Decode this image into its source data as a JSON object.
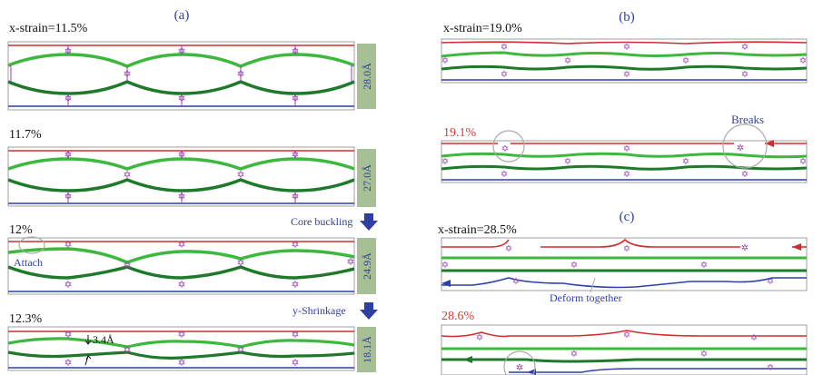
{
  "panels": {
    "a": "(a)",
    "b": "(b)",
    "c": "(c)"
  },
  "panel_a": {
    "rows": [
      {
        "strain": "x-strain=11.5%",
        "gap": "28.0Å"
      },
      {
        "strain": "11.7%",
        "gap": "27.0Å"
      },
      {
        "strain": "12%",
        "gap": "24.9Å",
        "note": "Attach"
      },
      {
        "strain": "12.3%",
        "gap": "18.1Å",
        "dimension": "3.4Å"
      }
    ],
    "arrows": [
      "Core buckling",
      "y-Shrinkage"
    ]
  },
  "panel_b": {
    "rows": [
      {
        "strain": "x-strain=19.0%"
      },
      {
        "strain": "19.1%",
        "note": "Breaks"
      }
    ]
  },
  "panel_c": {
    "rows": [
      {
        "strain": "x-strain=28.5%",
        "note": "Deform together"
      },
      {
        "strain": "28.6%"
      }
    ]
  },
  "colors": {
    "red": "#d42b2b",
    "light_green": "#3cb83c",
    "dark_green": "#1e7a2a",
    "blue": "#2a3fb0",
    "crosslinker": "#9b3fb5",
    "gap_box": "#a7bf94",
    "label_blue": "#2f3fa0",
    "label_red": "#d63a3a",
    "frame": "#888888"
  }
}
